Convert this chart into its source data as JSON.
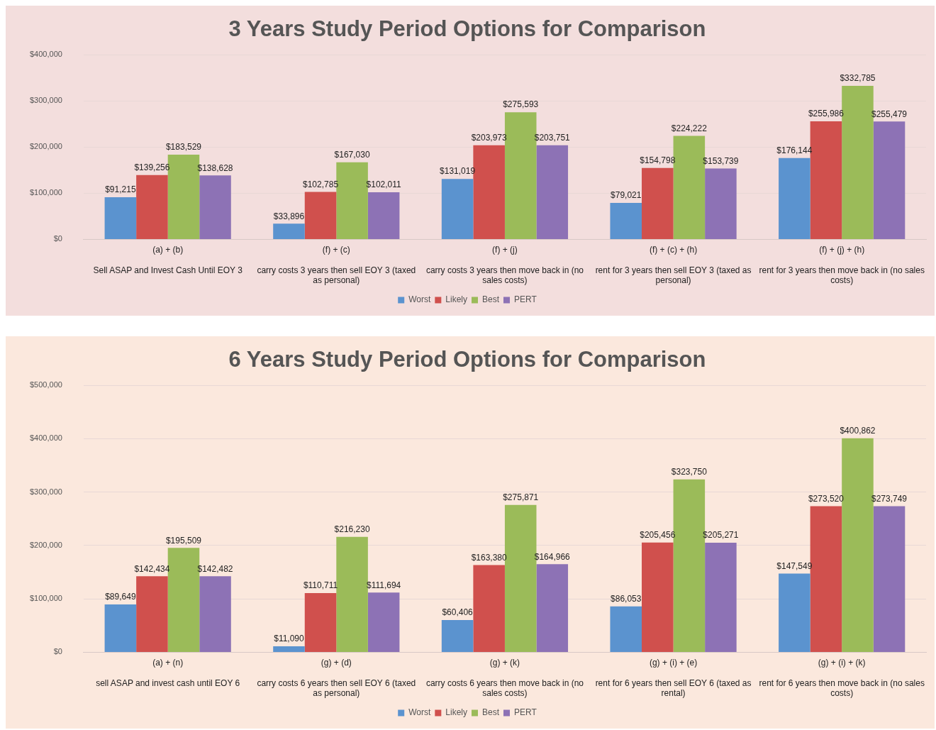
{
  "chart_data": [
    {
      "type": "bar",
      "title": "3 Years Study Period Options for Comparison",
      "categories": [
        "(a) + (b)\nSell ASAP and Invest Cash Until EOY 3",
        "(f) + (c)\ncarry costs 3 years then sell EOY 3 (taxed as personal)",
        "(f) + (j)\ncarry costs 3 years then move back in (no sales costs)",
        "(f) + (c) + (h)\nrent for 3 years then sell EOY 3 (taxed as personal)",
        "(f) + (j) + (h)\nrent for 3 years then move back in (no sales costs)"
      ],
      "series": [
        {
          "name": "Worst",
          "color": "#5b93cf",
          "values": [
            91215,
            33896,
            131019,
            79021,
            176144
          ],
          "value_labels": [
            "$91,215",
            "$33,896",
            "$131,019",
            "$79,021",
            "$176,144"
          ]
        },
        {
          "name": "Likely",
          "color": "#d0504d",
          "values": [
            139256,
            102785,
            203973,
            154798,
            255986
          ],
          "value_labels": [
            "$139,256",
            "$102,785",
            "$203,973",
            "$154,798",
            "$255,986"
          ]
        },
        {
          "name": "Best",
          "color": "#9bbb59",
          "values": [
            183529,
            167030,
            275593,
            224222,
            332785
          ],
          "value_labels": [
            "$183,529",
            "$167,030",
            "$275,593",
            "$224,222",
            "$332,785"
          ]
        },
        {
          "name": "PERT",
          "color": "#8d72b5",
          "values": [
            138628,
            102011,
            203751,
            153739,
            255479
          ],
          "value_labels": [
            "$138,628",
            "$102,011",
            "$203,751",
            "$153,739",
            "$255,479"
          ]
        }
      ],
      "ylim": [
        0,
        400000
      ],
      "yticks": [
        {
          "value": 0,
          "label": "$0"
        },
        {
          "value": 100000,
          "label": "$100,000"
        },
        {
          "value": 200000,
          "label": "$200,000"
        },
        {
          "value": 300000,
          "label": "$300,000"
        },
        {
          "value": 400000,
          "label": "$400,000"
        }
      ],
      "grid": "y",
      "legend": "bottom"
    },
    {
      "type": "bar",
      "title": "6 Years Study Period Options for Comparison",
      "categories": [
        "(a) + (n)\nsell ASAP and invest cash until EOY 6",
        "(g) + (d)\ncarry costs 6 years then sell EOY 6 (taxed as personal)",
        "(g) + (k)\ncarry costs 6 years then move back in (no sales costs)",
        "(g) + (i) + (e)\nrent for 6 years then sell EOY 6 (taxed as rental)",
        "(g) + (i) + (k)\nrent for 6 years then move back in (no sales costs)"
      ],
      "series": [
        {
          "name": "Worst",
          "color": "#5b93cf",
          "values": [
            89649,
            11090,
            60406,
            86053,
            147549
          ],
          "value_labels": [
            "$89,649",
            "$11,090",
            "$60,406",
            "$86,053",
            "$147,549"
          ]
        },
        {
          "name": "Likely",
          "color": "#d0504d",
          "values": [
            142434,
            110711,
            163380,
            205456,
            273520
          ],
          "value_labels": [
            "$142,434",
            "$110,711",
            "$163,380",
            "$205,456",
            "$273,520"
          ]
        },
        {
          "name": "Best",
          "color": "#9bbb59",
          "values": [
            195509,
            216230,
            275871,
            323750,
            400862
          ],
          "value_labels": [
            "$195,509",
            "$216,230",
            "$275,871",
            "$323,750",
            "$400,862"
          ]
        },
        {
          "name": "PERT",
          "color": "#8d72b5",
          "values": [
            142482,
            111694,
            164966,
            205271,
            273749
          ],
          "value_labels": [
            "$142,482",
            "$111,694",
            "$164,966",
            "$205,271",
            "$273,749"
          ]
        }
      ],
      "ylim": [
        0,
        500000
      ],
      "yticks": [
        {
          "value": 0,
          "label": "$0"
        },
        {
          "value": 100000,
          "label": "$100,000"
        },
        {
          "value": 200000,
          "label": "$200,000"
        },
        {
          "value": 300000,
          "label": "$300,000"
        },
        {
          "value": 400000,
          "label": "$400,000"
        },
        {
          "value": 500000,
          "label": "$500,000"
        }
      ],
      "grid": "y",
      "legend": "bottom"
    }
  ]
}
